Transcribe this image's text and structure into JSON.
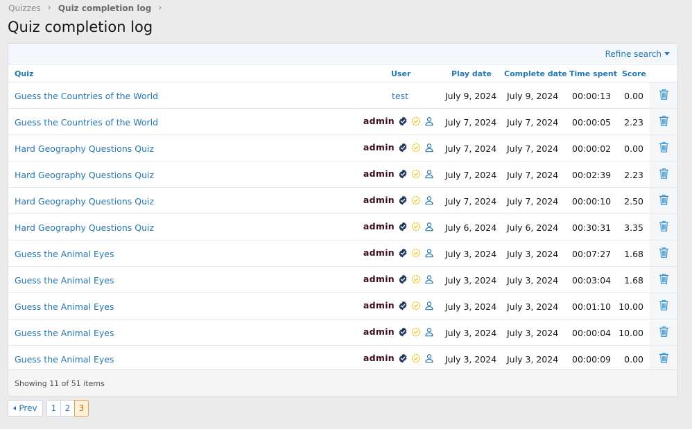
{
  "breadcrumb": {
    "items": [
      "Quizzes",
      "Quiz completion log"
    ]
  },
  "page": {
    "title": "Quiz completion log"
  },
  "filter": {
    "refine_label": "Refine search"
  },
  "table": {
    "headers": {
      "quiz": "Quiz",
      "user": "User",
      "play_date": "Play date",
      "complete_date": "Complete date",
      "time_spent": "Time spent",
      "score": "Score"
    },
    "rows": [
      {
        "quiz": "Guess the Countries of the World",
        "user": "test",
        "play_date": "July 9, 2024",
        "complete_date": "July 9, 2024",
        "time_spent": "00:00:13",
        "score": "0.00"
      },
      {
        "quiz": "Guess the Countries of the World",
        "user": "admin",
        "play_date": "July 7, 2024",
        "complete_date": "July 7, 2024",
        "time_spent": "00:00:05",
        "score": "2.23"
      },
      {
        "quiz": "Hard Geography Questions Quiz",
        "user": "admin",
        "play_date": "July 7, 2024",
        "complete_date": "July 7, 2024",
        "time_spent": "00:00:02",
        "score": "0.00"
      },
      {
        "quiz": "Hard Geography Questions Quiz",
        "user": "admin",
        "play_date": "July 7, 2024",
        "complete_date": "July 7, 2024",
        "time_spent": "00:02:39",
        "score": "2.23"
      },
      {
        "quiz": "Hard Geography Questions Quiz",
        "user": "admin",
        "play_date": "July 7, 2024",
        "complete_date": "July 7, 2024",
        "time_spent": "00:00:10",
        "score": "2.50"
      },
      {
        "quiz": "Hard Geography Questions Quiz",
        "user": "admin",
        "play_date": "July 6, 2024",
        "complete_date": "July 6, 2024",
        "time_spent": "00:30:31",
        "score": "3.35"
      },
      {
        "quiz": "Guess the Animal Eyes",
        "user": "admin",
        "play_date": "July 3, 2024",
        "complete_date": "July 3, 2024",
        "time_spent": "00:07:27",
        "score": "1.68"
      },
      {
        "quiz": "Guess the Animal Eyes",
        "user": "admin",
        "play_date": "July 3, 2024",
        "complete_date": "July 3, 2024",
        "time_spent": "00:03:04",
        "score": "1.68"
      },
      {
        "quiz": "Guess the Animal Eyes",
        "user": "admin",
        "play_date": "July 3, 2024",
        "complete_date": "July 3, 2024",
        "time_spent": "00:01:10",
        "score": "10.00"
      },
      {
        "quiz": "Guess the Animal Eyes",
        "user": "admin",
        "play_date": "July 3, 2024",
        "complete_date": "July 3, 2024",
        "time_spent": "00:00:04",
        "score": "10.00"
      },
      {
        "quiz": "Guess the Animal Eyes",
        "user": "admin",
        "play_date": "July 3, 2024",
        "complete_date": "July 3, 2024",
        "time_spent": "00:00:09",
        "score": "0.00"
      }
    ],
    "footer": "Showing 11 of 51 items"
  },
  "icons": {
    "verified": "verified-badge-icon",
    "staff": "check-circle-icon",
    "profile": "user-icon",
    "delete": "trash-icon"
  },
  "colors": {
    "link": "#2577b1",
    "admin_name": "#3b0d1e",
    "verified": "#1d3557",
    "staff_badge": "#f0c419",
    "current_page": "#e9a04a"
  },
  "pagination": {
    "prev_label": "Prev",
    "pages": [
      "1",
      "2",
      "3"
    ],
    "current": "3"
  }
}
